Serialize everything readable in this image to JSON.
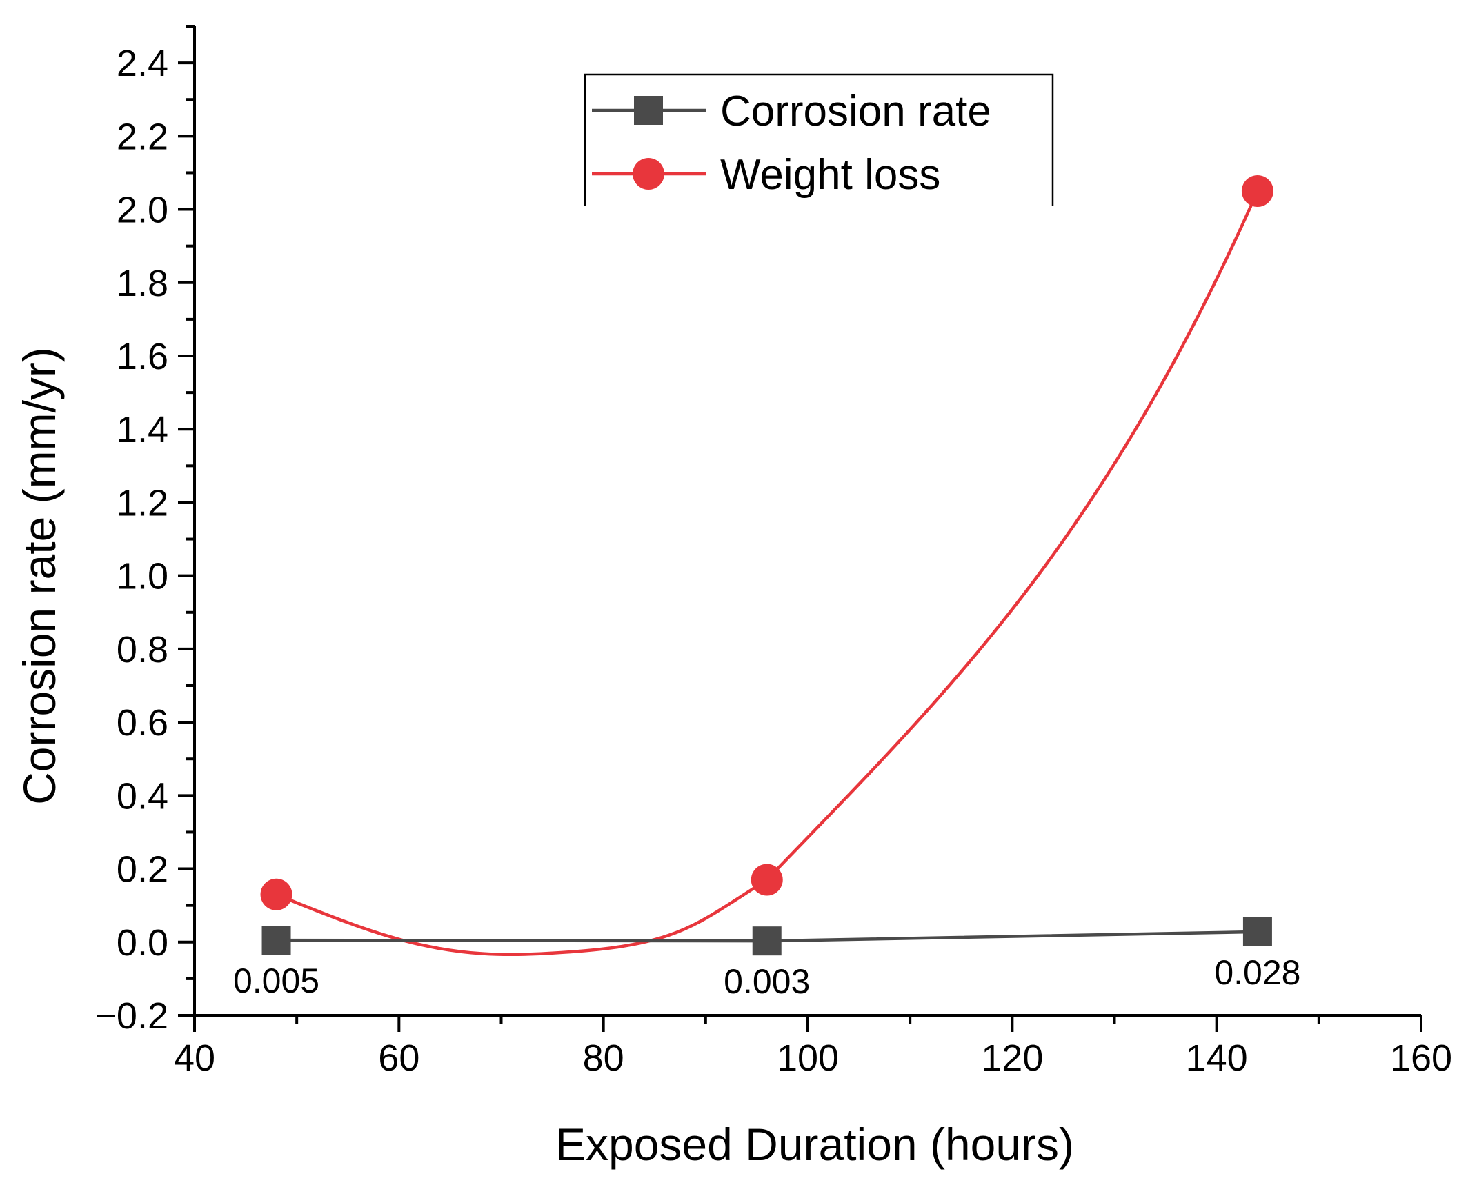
{
  "chart_data": {
    "type": "line",
    "xlabel": "Exposed Duration (hours)",
    "ylabel": "Corrosion rate (mm/yr)",
    "xlim": [
      40,
      160
    ],
    "ylim": [
      -0.2,
      2.5
    ],
    "xticks": [
      40,
      60,
      80,
      100,
      120,
      140,
      160
    ],
    "xtick_labels": [
      "40",
      "60",
      "80",
      "100",
      "120",
      "140",
      "160"
    ],
    "yticks": [
      -0.2,
      0.0,
      0.2,
      0.4,
      0.6,
      0.8,
      1.0,
      1.2,
      1.4,
      1.6,
      1.8,
      2.0,
      2.2,
      2.4
    ],
    "ytick_labels": [
      "−0.2",
      "0.0",
      "0.2",
      "0.4",
      "0.6",
      "0.8",
      "1.0",
      "1.2",
      "1.4",
      "1.6",
      "1.8",
      "2.0",
      "2.2",
      "2.4"
    ],
    "legend_position": "top-center",
    "series": [
      {
        "name": "Corrosion rate",
        "color": "#4a4a4a",
        "marker": "square",
        "x": [
          48,
          96,
          144
        ],
        "values": [
          0.005,
          0.003,
          0.028
        ],
        "data_labels": [
          "0.005",
          "0.003",
          "0.028"
        ]
      },
      {
        "name": "Weight loss",
        "color": "#e8363c",
        "marker": "circle",
        "smooth": true,
        "x": [
          48,
          96,
          144
        ],
        "values": [
          0.13,
          0.17,
          2.05
        ]
      }
    ]
  }
}
